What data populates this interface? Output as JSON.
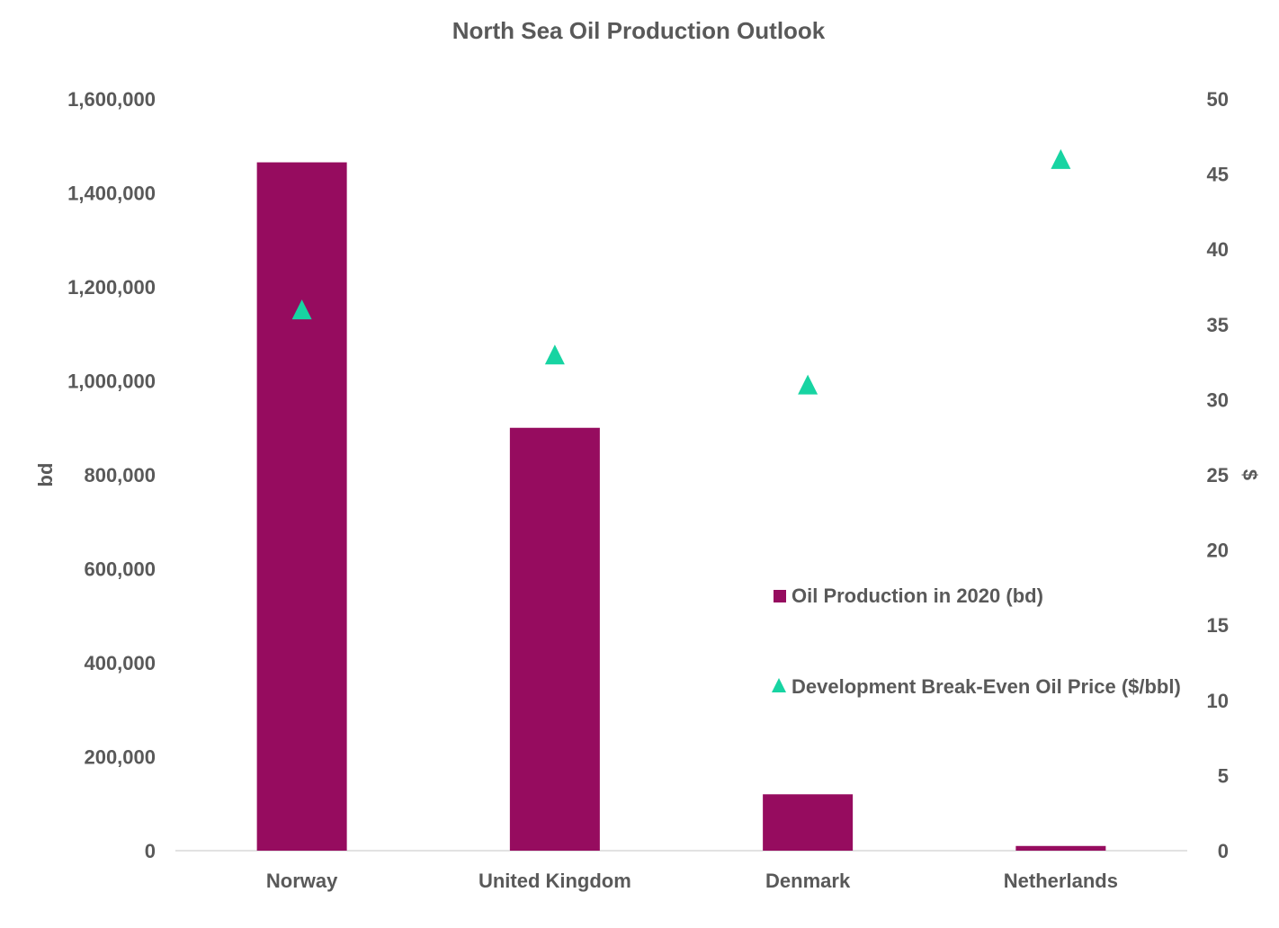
{
  "chart_data": {
    "type": "bar",
    "title": "North Sea Oil Production Outlook",
    "categories": [
      "Norway",
      "United Kingdom",
      "Denmark",
      "Netherlands"
    ],
    "series": [
      {
        "name": "Oil Production in 2020 (bd)",
        "kind": "bar",
        "axis": "left",
        "values": [
          1465000,
          900000,
          120000,
          10000
        ]
      },
      {
        "name": "Development Break-Even Oil Price ($/bbl)",
        "kind": "marker",
        "marker": "triangle",
        "axis": "right",
        "values": [
          36,
          33,
          31,
          46
        ]
      }
    ],
    "ylabel": "bd",
    "y2label": "$",
    "ylim": [
      0,
      1600000
    ],
    "y2lim": [
      0,
      50
    ],
    "yticks": [
      "0",
      "200,000",
      "400,000",
      "600,000",
      "800,000",
      "1,000,000",
      "1,200,000",
      "1,400,000",
      "1,600,000"
    ],
    "y2ticks": [
      "0",
      "5",
      "10",
      "15",
      "20",
      "25",
      "30",
      "35",
      "40",
      "45",
      "50"
    ],
    "grid": false,
    "legend_placement": "center-right",
    "colors": {
      "bar": "#960C5F",
      "marker": "#17D4A2",
      "text": "#595959",
      "axis": "#D9D9D9"
    }
  }
}
